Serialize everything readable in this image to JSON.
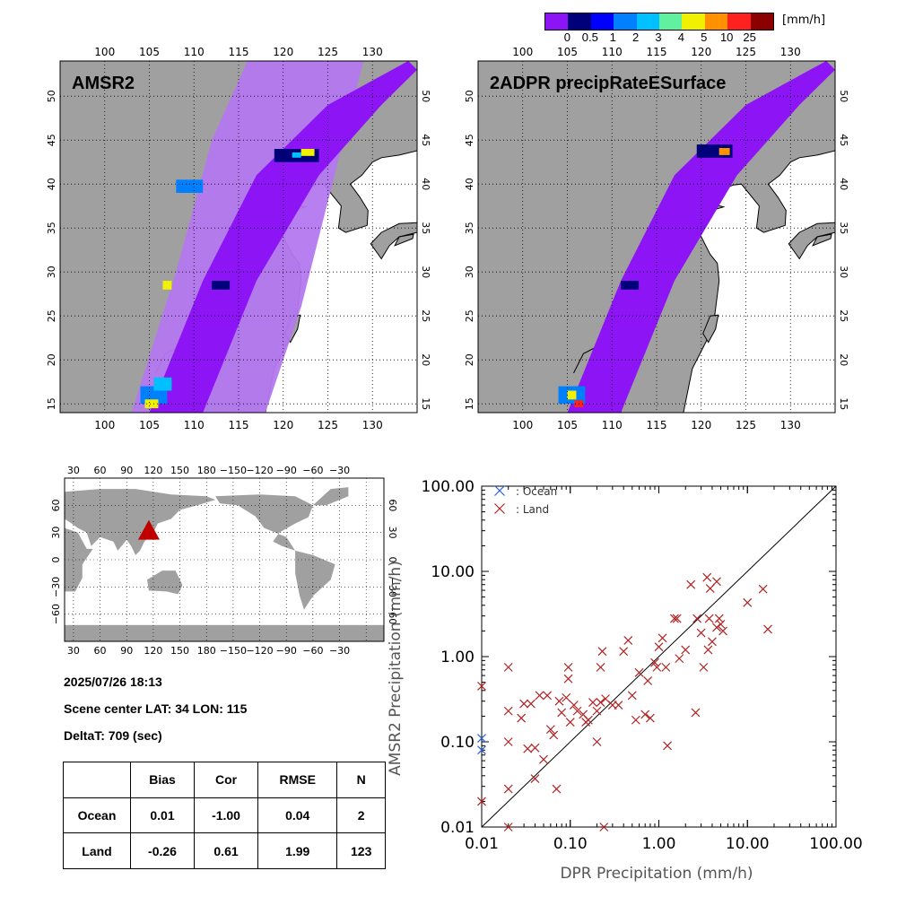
{
  "colorbar": {
    "unit": "[mm/h]",
    "labels": [
      "0",
      "0.5",
      "1",
      "2",
      "3",
      "4",
      "5",
      "10",
      "25"
    ],
    "colors": [
      "#8c14f5",
      "#00007a",
      "#0000ff",
      "#0080ff",
      "#00c0ff",
      "#60f0a0",
      "#f0f000",
      "#ff9000",
      "#ff2020",
      "#8c0000"
    ]
  },
  "maps": {
    "lon_ticks": [
      "100",
      "105",
      "110",
      "115",
      "120",
      "125",
      "130"
    ],
    "lat_ticks": [
      "15",
      "20",
      "25",
      "30",
      "35",
      "40",
      "45",
      "50"
    ],
    "left_title": "AMSR2",
    "right_title": "2ADPR precipRateESurface",
    "land_color": "#a0a0a0",
    "ocean_color": "#ffffff",
    "swath_amsr2_color": "#b478f0",
    "swath_dpr_color": "#8c14f5"
  },
  "world_map": {
    "lon_ticks": [
      "30",
      "60",
      "90",
      "120",
      "150",
      "180",
      "−150",
      "−120",
      "−90",
      "−60",
      "−30"
    ],
    "lat_ticks": [
      "−60",
      "−30",
      "0",
      "30",
      "60"
    ],
    "marker_color": "#c00000"
  },
  "info": {
    "datetime": "2025/07/26 18:13",
    "scene_center": "Scene center LAT: 34   LON: 115",
    "deltat": "DeltaT:  709 (sec)"
  },
  "stats_table": {
    "headers": [
      "",
      "Bias",
      "Cor",
      "RMSE",
      "N"
    ],
    "rows": [
      [
        "Ocean",
        "0.01",
        "-1.00",
        "0.04",
        "2"
      ],
      [
        "Land",
        "-0.26",
        "0.61",
        "1.99",
        "123"
      ]
    ]
  },
  "chart_data": {
    "type": "scatter",
    "xlabel": "DPR Precipitation (mm/h)",
    "ylabel": "AMSR2 Precipitation (mm/h)",
    "xscale": "log",
    "yscale": "log",
    "xlim": [
      0.01,
      100
    ],
    "ylim": [
      0.01,
      100
    ],
    "xticks": [
      "0.01",
      "0.10",
      "1.00",
      "10.00",
      "100.00"
    ],
    "yticks": [
      "0.01",
      "0.10",
      "1.00",
      "10.00",
      "100.00"
    ],
    "legend_position": "top-left",
    "one_to_one_line": true,
    "series": [
      {
        "name": ": Ocean",
        "color": "#2a5fd6",
        "marker": "x",
        "points": [
          [
            0.01,
            0.11
          ],
          [
            0.01,
            0.08
          ]
        ]
      },
      {
        "name": ": Land",
        "color": "#b22222",
        "marker": "x",
        "points": [
          [
            0.01,
            0.45
          ],
          [
            0.01,
            0.02
          ],
          [
            0.02,
            0.75
          ],
          [
            0.02,
            0.23
          ],
          [
            0.02,
            0.1
          ],
          [
            0.02,
            0.028
          ],
          [
            0.02,
            0.01
          ],
          [
            0.028,
            0.19
          ],
          [
            0.03,
            0.28
          ],
          [
            0.033,
            0.083
          ],
          [
            0.036,
            0.28
          ],
          [
            0.04,
            0.085
          ],
          [
            0.04,
            0.037
          ],
          [
            0.045,
            0.35
          ],
          [
            0.05,
            0.062
          ],
          [
            0.055,
            0.35
          ],
          [
            0.06,
            0.14
          ],
          [
            0.065,
            0.12
          ],
          [
            0.07,
            0.028
          ],
          [
            0.075,
            0.3
          ],
          [
            0.08,
            0.22
          ],
          [
            0.09,
            0.33
          ],
          [
            0.095,
            0.75
          ],
          [
            0.095,
            0.55
          ],
          [
            0.1,
            0.17
          ],
          [
            0.11,
            0.27
          ],
          [
            0.12,
            0.23
          ],
          [
            0.14,
            0.21
          ],
          [
            0.15,
            0.17
          ],
          [
            0.16,
            0.18
          ],
          [
            0.18,
            0.29
          ],
          [
            0.2,
            0.23
          ],
          [
            0.2,
            0.1
          ],
          [
            0.22,
            0.75
          ],
          [
            0.22,
            0.29
          ],
          [
            0.23,
            1.15
          ],
          [
            0.24,
            0.01
          ],
          [
            0.25,
            0.32
          ],
          [
            0.3,
            0.27
          ],
          [
            0.35,
            0.27
          ],
          [
            0.4,
            1.15
          ],
          [
            0.45,
            1.55
          ],
          [
            0.5,
            0.35
          ],
          [
            0.55,
            0.18
          ],
          [
            0.6,
            0.65
          ],
          [
            0.7,
            0.21
          ],
          [
            0.75,
            0.52
          ],
          [
            0.8,
            0.19
          ],
          [
            0.9,
            0.85
          ],
          [
            0.95,
            0.75
          ],
          [
            1.0,
            1.3
          ],
          [
            1.1,
            1.65
          ],
          [
            1.2,
            0.75
          ],
          [
            1.25,
            0.09
          ],
          [
            1.5,
            2.8
          ],
          [
            1.6,
            2.8
          ],
          [
            1.7,
            0.95
          ],
          [
            2.0,
            1.2
          ],
          [
            2.3,
            7.0
          ],
          [
            2.6,
            0.22
          ],
          [
            2.7,
            2.8
          ],
          [
            3.0,
            1.9
          ],
          [
            3.2,
            0.75
          ],
          [
            3.5,
            8.5
          ],
          [
            3.6,
            1.2
          ],
          [
            3.7,
            2.8
          ],
          [
            3.8,
            6.3
          ],
          [
            4.0,
            1.5
          ],
          [
            4.5,
            7.6
          ],
          [
            4.5,
            2.2
          ],
          [
            4.8,
            2.8
          ],
          [
            5.0,
            2.4
          ],
          [
            5.3,
            2.0
          ],
          [
            10.0,
            4.3
          ],
          [
            15.0,
            6.2
          ],
          [
            17.0,
            2.1
          ]
        ]
      }
    ]
  }
}
